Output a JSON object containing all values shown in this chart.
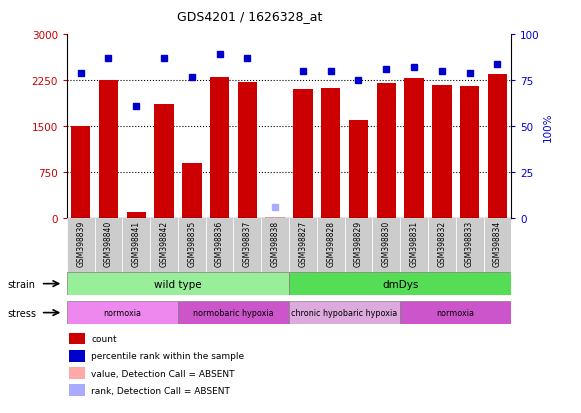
{
  "title": "GDS4201 / 1626328_at",
  "samples": [
    "GSM398839",
    "GSM398840",
    "GSM398841",
    "GSM398842",
    "GSM398835",
    "GSM398836",
    "GSM398837",
    "GSM398838",
    "GSM398827",
    "GSM398828",
    "GSM398829",
    "GSM398830",
    "GSM398831",
    "GSM398832",
    "GSM398833",
    "GSM398834"
  ],
  "counts": [
    1500,
    2250,
    100,
    1870,
    900,
    2300,
    2220,
    30,
    2110,
    2120,
    1600,
    2200,
    2280,
    2180,
    2160,
    2350
  ],
  "absent_count": [
    false,
    false,
    false,
    false,
    false,
    false,
    false,
    true,
    false,
    false,
    false,
    false,
    false,
    false,
    false,
    false
  ],
  "percentile": [
    79,
    87,
    61,
    87,
    77,
    89,
    87,
    6,
    80,
    80,
    75,
    81,
    82,
    80,
    79,
    84
  ],
  "absent_percentile": [
    false,
    false,
    false,
    false,
    false,
    false,
    false,
    true,
    false,
    false,
    false,
    false,
    false,
    false,
    false,
    false
  ],
  "ylim_left": [
    0,
    3000
  ],
  "ylim_right": [
    0,
    100
  ],
  "yticks_left": [
    0,
    750,
    1500,
    2250,
    3000
  ],
  "yticks_right": [
    0,
    25,
    50,
    75,
    100
  ],
  "bar_color": "#cc0000",
  "absent_bar_color": "#ffaaaa",
  "dot_color": "#0000cc",
  "absent_dot_color": "#aaaaff",
  "strain_groups": [
    {
      "label": "wild type",
      "start": 0,
      "end": 8,
      "color": "#99ee99"
    },
    {
      "label": "dmDys",
      "start": 8,
      "end": 16,
      "color": "#55dd55"
    }
  ],
  "stress_colors_list": [
    "#ee88ee",
    "#cc55cc",
    "#ddaadd",
    "#cc55cc"
  ],
  "stress_groups": [
    {
      "label": "normoxia",
      "start": 0,
      "end": 4
    },
    {
      "label": "normobaric hypoxia",
      "start": 4,
      "end": 8
    },
    {
      "label": "chronic hypobaric hypoxia",
      "start": 8,
      "end": 12
    },
    {
      "label": "normoxia",
      "start": 12,
      "end": 16
    }
  ],
  "bg_color": "#ffffff",
  "tick_label_color_left": "#cc0000",
  "tick_label_color_right": "#0000cc",
  "sample_bg_color": "#cccccc"
}
